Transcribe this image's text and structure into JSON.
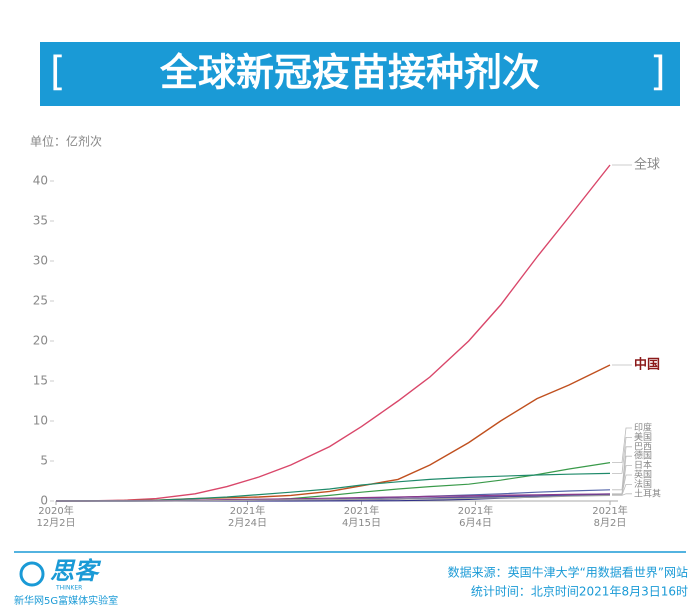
{
  "chart_data": {
    "type": "line",
    "title": "全球新冠疫苗接种剂次",
    "unit_label": "单位：亿剂次",
    "x": [
      "2020-12-02",
      "2020-12-15",
      "2021-01-01",
      "2021-01-15",
      "2021-02-01",
      "2021-02-15",
      "2021-03-01",
      "2021-03-15",
      "2021-04-01",
      "2021-04-15",
      "2021-05-01",
      "2021-05-15",
      "2021-06-01",
      "2021-06-15",
      "2021-07-01",
      "2021-07-15",
      "2021-08-02"
    ],
    "xlim": [
      "2020-12-02",
      "2021-08-02"
    ],
    "xticks": [
      {
        "value": "2020-12-02",
        "label": [
          "2020年",
          "12月2日"
        ]
      },
      {
        "value": "2021-02-24",
        "label": [
          "2021年",
          "2月24日"
        ]
      },
      {
        "value": "2021-04-15",
        "label": [
          "2021年",
          "4月15日"
        ]
      },
      {
        "value": "2021-06-04",
        "label": [
          "2021年",
          "6月4日"
        ]
      },
      {
        "value": "2021-08-02",
        "label": [
          "2021年",
          "8月2日"
        ]
      }
    ],
    "ylim": [
      0,
      42
    ],
    "yticks": [
      0,
      5,
      10,
      15,
      20,
      25,
      30,
      35,
      40
    ],
    "series": [
      {
        "name": "全球",
        "color": "#d9476a",
        "values": [
          0,
          0.01,
          0.1,
          0.3,
          0.9,
          1.8,
          3.0,
          4.5,
          6.8,
          9.3,
          12.5,
          15.5,
          20,
          24.5,
          30.5,
          35.5,
          42
        ]
      },
      {
        "name": "中国",
        "color": "#c0501f",
        "values": [
          0,
          0,
          0.05,
          0.1,
          0.3,
          0.4,
          0.5,
          0.7,
          1.2,
          1.9,
          2.7,
          4.5,
          7.3,
          10,
          12.8,
          14.5,
          17
        ]
      },
      {
        "name": "印度",
        "color": "#3a9a4a",
        "values": [
          0,
          0,
          0,
          0.01,
          0.05,
          0.1,
          0.15,
          0.3,
          0.7,
          1.1,
          1.5,
          1.8,
          2.1,
          2.6,
          3.3,
          4.0,
          4.8
        ]
      },
      {
        "name": "美国",
        "color": "#1f8a6a",
        "values": [
          0,
          0.01,
          0.03,
          0.1,
          0.3,
          0.5,
          0.8,
          1.1,
          1.5,
          2.0,
          2.4,
          2.7,
          2.95,
          3.1,
          3.25,
          3.35,
          3.45
        ]
      },
      {
        "name": "巴西",
        "color": "#5566aa",
        "values": [
          0,
          0,
          0,
          0.01,
          0.03,
          0.05,
          0.08,
          0.13,
          0.2,
          0.3,
          0.45,
          0.6,
          0.75,
          0.9,
          1.1,
          1.25,
          1.4
        ]
      },
      {
        "name": "德国",
        "color": "#7a4fa0",
        "values": [
          0,
          0,
          0.002,
          0.01,
          0.03,
          0.05,
          0.07,
          0.1,
          0.15,
          0.2,
          0.3,
          0.4,
          0.5,
          0.6,
          0.72,
          0.8,
          0.9
        ]
      },
      {
        "name": "日本",
        "color": "#333388",
        "values": [
          0,
          0,
          0,
          0,
          0,
          0,
          0,
          0.002,
          0.01,
          0.02,
          0.04,
          0.1,
          0.2,
          0.35,
          0.5,
          0.65,
          0.8
        ]
      },
      {
        "name": "英国",
        "color": "#8a3a8a",
        "values": [
          0,
          0.001,
          0.01,
          0.04,
          0.1,
          0.17,
          0.22,
          0.27,
          0.35,
          0.42,
          0.5,
          0.58,
          0.65,
          0.72,
          0.78,
          0.82,
          0.85
        ]
      },
      {
        "name": "法国",
        "color": "#4a4a9a",
        "values": [
          0,
          0,
          0,
          0.005,
          0.02,
          0.03,
          0.05,
          0.07,
          0.11,
          0.16,
          0.24,
          0.33,
          0.42,
          0.52,
          0.6,
          0.68,
          0.75
        ]
      },
      {
        "name": "土耳其",
        "color": "#a0a0a0",
        "values": [
          0,
          0,
          0,
          0.005,
          0.03,
          0.06,
          0.1,
          0.14,
          0.18,
          0.2,
          0.25,
          0.28,
          0.33,
          0.4,
          0.48,
          0.6,
          0.7
        ]
      }
    ]
  },
  "footer": {
    "logo": "思客",
    "logo_sub": "THINKER",
    "org": "新华网5G富媒体实验室",
    "source": "数据来源：英国牛津大学“用数据看世界”网站",
    "time": "统计时间：北京时间2021年8月3日16时"
  }
}
